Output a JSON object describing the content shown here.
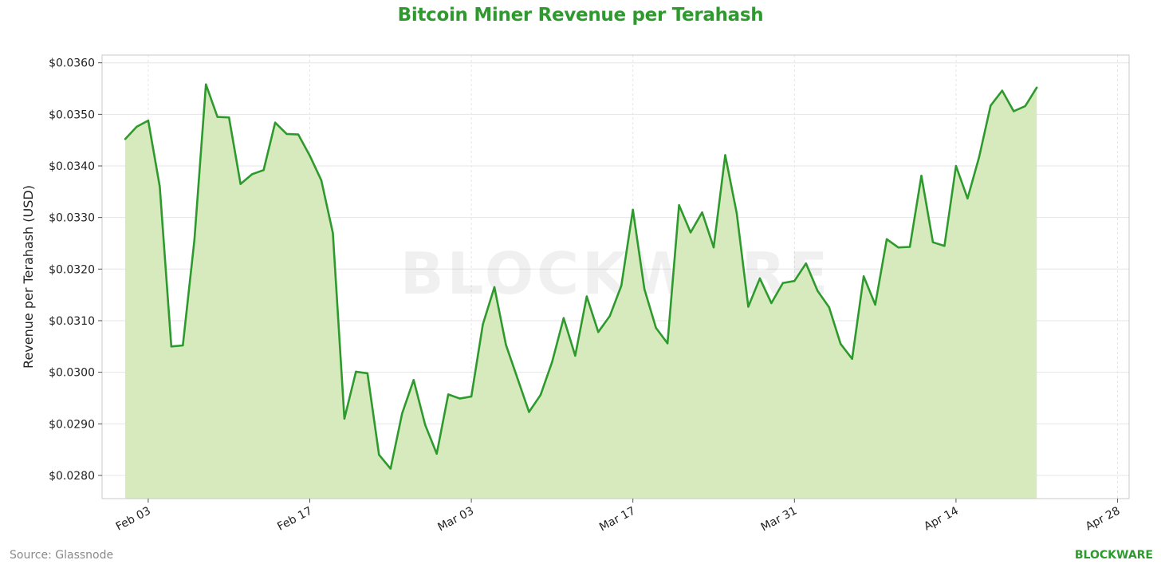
{
  "title": "Bitcoin Miner Revenue per Terahash",
  "source": "Source: Glassnode",
  "brand": "BLOCKWARE",
  "watermark": "BLOCKWARE",
  "colors": {
    "line": "#2e9a2e",
    "fill": "#d7eabd",
    "title": "#2e9a2e",
    "grid": "#e6e6e6",
    "frame": "#c8c8c8"
  },
  "chart_data": {
    "type": "area",
    "title": "Bitcoin Miner Revenue per Terahash",
    "xlabel": "",
    "ylabel": "Revenue per Terahash (USD)",
    "ylim": [
      0.02755,
      0.03615
    ],
    "xlim_days": [
      -2,
      87
    ],
    "grid": true,
    "x_start_date": "Feb 01",
    "x_tick_labels": [
      "Feb 03",
      "Feb 17",
      "Mar 03",
      "Mar 17",
      "Mar 31",
      "Apr 14",
      "Apr 28"
    ],
    "x_tick_days": [
      2,
      16,
      30,
      44,
      58,
      72,
      86
    ],
    "y_ticks": [
      0.028,
      0.029,
      0.03,
      0.031,
      0.032,
      0.033,
      0.034,
      0.035,
      0.036
    ],
    "y_tick_labels": [
      "$0.0280",
      "$0.0290",
      "$0.0300",
      "$0.0310",
      "$0.0320",
      "$0.0330",
      "$0.0340",
      "$0.0350",
      "$0.0360"
    ],
    "series": [
      {
        "name": "Revenue per Terahash",
        "values": [
          0.03452,
          0.03476,
          0.03488,
          0.0336,
          0.0305,
          0.03052,
          0.03256,
          0.03558,
          0.03495,
          0.03494,
          0.03365,
          0.03384,
          0.03392,
          0.03484,
          0.03462,
          0.03461,
          0.0342,
          0.03372,
          0.0327,
          0.0291,
          0.03001,
          0.02998,
          0.0284,
          0.02813,
          0.0292,
          0.02985,
          0.02898,
          0.02842,
          0.02957,
          0.02949,
          0.02953,
          0.03093,
          0.03165,
          0.03053,
          0.02988,
          0.02923,
          0.02956,
          0.0302,
          0.03105,
          0.03032,
          0.03147,
          0.03078,
          0.03109,
          0.03168,
          0.03315,
          0.03161,
          0.03086,
          0.03056,
          0.03324,
          0.03271,
          0.0331,
          0.03242,
          0.03421,
          0.03308,
          0.03127,
          0.03182,
          0.03134,
          0.03173,
          0.03177,
          0.03211,
          0.03158,
          0.03126,
          0.03055,
          0.03026,
          0.03186,
          0.03131,
          0.03258,
          0.03242,
          0.03243,
          0.03381,
          0.03252,
          0.03245,
          0.034,
          0.03337,
          0.03417,
          0.03517,
          0.03546,
          0.03506,
          0.03516,
          0.03552
        ]
      }
    ]
  }
}
